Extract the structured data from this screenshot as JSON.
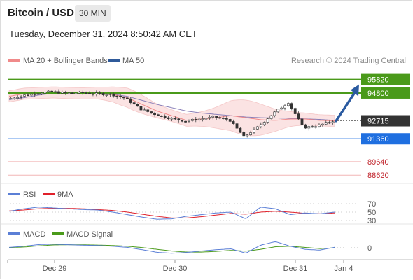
{
  "header": {
    "title": "Bitcoin / USD",
    "timeframe": "30 MIN",
    "timestamp": "Tuesday, December 31, 2024 8:50:42 AM CET",
    "credit": "Research © 2024 Trading Central"
  },
  "colors": {
    "price_up": "#2f9a2f",
    "price_down": "#c0222a",
    "ma20_bollinger": "#f08a8a",
    "ma50": "#2f5a9a",
    "resistance": "#4a9a1a",
    "pivot": "#333333",
    "support": "#1f6fe0",
    "rsi": "#5b7fd6",
    "rsi_ma": "#e0202a",
    "macd": "#5b7fd6",
    "macd_signal": "#4a9a1a",
    "forecast_arrow": "#2a5aa0"
  },
  "chart_data": [
    {
      "type": "line",
      "name": "price",
      "title": "Bitcoin / USD",
      "x_ticks": [
        "Dec 29",
        "Dec 30",
        "Dec 31",
        "Jan 4"
      ],
      "ylim": [
        88000,
        96800
      ],
      "legend": [
        {
          "label": "MA 20 + Bollinger Bands",
          "color": "#f08a8a"
        },
        {
          "label": "MA 50",
          "color": "#2f5a9a"
        }
      ],
      "legend_position": "top-left",
      "series": [
        {
          "name": "MA 20 + Bollinger Bands",
          "values": [
            94550,
            94750,
            94800,
            94850,
            94800,
            94780,
            94800,
            94700,
            94450,
            93950,
            93450,
            93100,
            92750,
            92850,
            92950,
            93100,
            92950,
            92800,
            92750,
            92850,
            92850,
            92750,
            92715
          ]
        },
        {
          "name": "MA 50",
          "values": [
            94300,
            94450,
            94650,
            94780,
            94800,
            94790,
            94780,
            94720,
            94550,
            94250,
            93950,
            93700,
            93450,
            93300,
            93200,
            93100,
            93000,
            92950,
            92930,
            92900,
            92860,
            92820,
            92750
          ]
        }
      ],
      "close": [
        94350,
        94600,
        94800,
        94900,
        94780,
        94820,
        94750,
        94700,
        94400,
        93600,
        93200,
        92900,
        92700,
        92850,
        93000,
        92800,
        91500,
        92300,
        93300,
        94100,
        92200,
        92350,
        92700
      ],
      "levels": [
        {
          "label": "95820",
          "value": 95820,
          "kind": "resistance"
        },
        {
          "label": "94800",
          "value": 94800,
          "kind": "resistance"
        },
        {
          "label": "92715",
          "value": 92715,
          "kind": "pivot"
        },
        {
          "label": "91360",
          "value": 91360,
          "kind": "support"
        },
        {
          "label": "89640",
          "value": 89640,
          "kind": "target"
        },
        {
          "label": "88620",
          "value": 88620,
          "kind": "target"
        }
      ]
    },
    {
      "type": "line",
      "name": "rsi",
      "ylim": [
        25,
        75
      ],
      "ticks": [
        "70",
        "50",
        "30"
      ],
      "legend": [
        {
          "label": "RSI",
          "color": "#5b7fd6"
        },
        {
          "label": "9MA",
          "color": "#e0202a"
        }
      ],
      "series": [
        {
          "name": "RSI",
          "values": [
            52,
            58,
            62,
            60,
            58,
            56,
            55,
            50,
            44,
            38,
            33,
            34,
            40,
            44,
            48,
            50,
            34,
            62,
            58,
            44,
            48,
            46,
            50
          ]
        },
        {
          "name": "9MA",
          "values": [
            53,
            55,
            58,
            59,
            59,
            58,
            56,
            54,
            50,
            45,
            40,
            36,
            36,
            39,
            43,
            47,
            45,
            50,
            52,
            50,
            47,
            46,
            48
          ]
        }
      ]
    },
    {
      "type": "line",
      "name": "macd",
      "ylim": [
        -600,
        600
      ],
      "ticks": [
        "0"
      ],
      "legend": [
        {
          "label": "MACD",
          "color": "#5b7fd6"
        },
        {
          "label": "MACD Signal",
          "color": "#4a9a1a"
        }
      ],
      "series": [
        {
          "name": "MACD",
          "values": [
            30,
            120,
            250,
            280,
            240,
            200,
            180,
            120,
            30,
            -150,
            -350,
            -420,
            -360,
            -250,
            -150,
            -80,
            -420,
            200,
            480,
            120,
            -120,
            -180,
            40
          ]
        },
        {
          "name": "MACD Signal",
          "values": [
            20,
            60,
            150,
            220,
            240,
            230,
            210,
            180,
            120,
            20,
            -120,
            -250,
            -330,
            -330,
            -280,
            -200,
            -260,
            -120,
            80,
            120,
            30,
            -60,
            0
          ]
        }
      ]
    }
  ]
}
